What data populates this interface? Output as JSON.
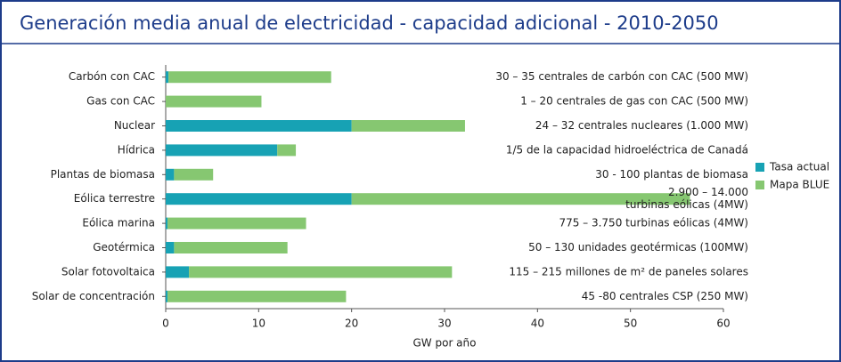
{
  "chart_data": {
    "type": "bar",
    "orientation": "horizontal",
    "stacked": true,
    "title": "Generación media anual de electricidad - capacidad adicional - 2010-2050",
    "x_label": "GW por año",
    "categories": [
      "Carbón con CAC",
      "Gas con CAC",
      "Nuclear",
      "Hídrica",
      "Plantas de biomasa",
      "Eólica terrestre",
      "Eólica marina",
      "Geotérmica",
      "Solar fotovoltaica",
      "Solar de concentración"
    ],
    "series": [
      {
        "name": "Tasa actual",
        "color": "#17a2b4",
        "values": [
          0.3,
          0,
          20,
          12,
          0.9,
          20,
          0.2,
          0.9,
          2.5,
          0.2
        ]
      },
      {
        "name": "Mapa BLUE",
        "color": "#86c771",
        "values": [
          17.5,
          10.3,
          12.2,
          2,
          4.2,
          36.4,
          14.9,
          12.2,
          28.3,
          19.2
        ]
      }
    ],
    "annotations": [
      [
        "30 – 35 centrales de carbón con CAC (500 MW)"
      ],
      [
        "1 – 20 centrales de gas con CAC (500 MW)"
      ],
      [
        "24 – 32 centrales nucleares (1.000 MW)"
      ],
      [
        "1/5 de la capacidad hidroeléctrica de Canadá"
      ],
      [
        "30 - 100 plantas de biomasa"
      ],
      [
        "2.900 – 14.000",
        "turbinas eólicas (4MW)"
      ],
      [
        "775 – 3.750 turbinas eólicas (4MW)"
      ],
      [
        "50 – 130 unidades geotérmicas (100MW)"
      ],
      [
        "115 – 215 millones de m² de paneles solares"
      ],
      [
        "45 -80 centrales CSP (250 MW)"
      ]
    ],
    "xlim": [
      0,
      60
    ],
    "xticks": [
      0,
      10,
      20,
      30,
      40,
      50,
      60
    ],
    "legend": "right"
  }
}
